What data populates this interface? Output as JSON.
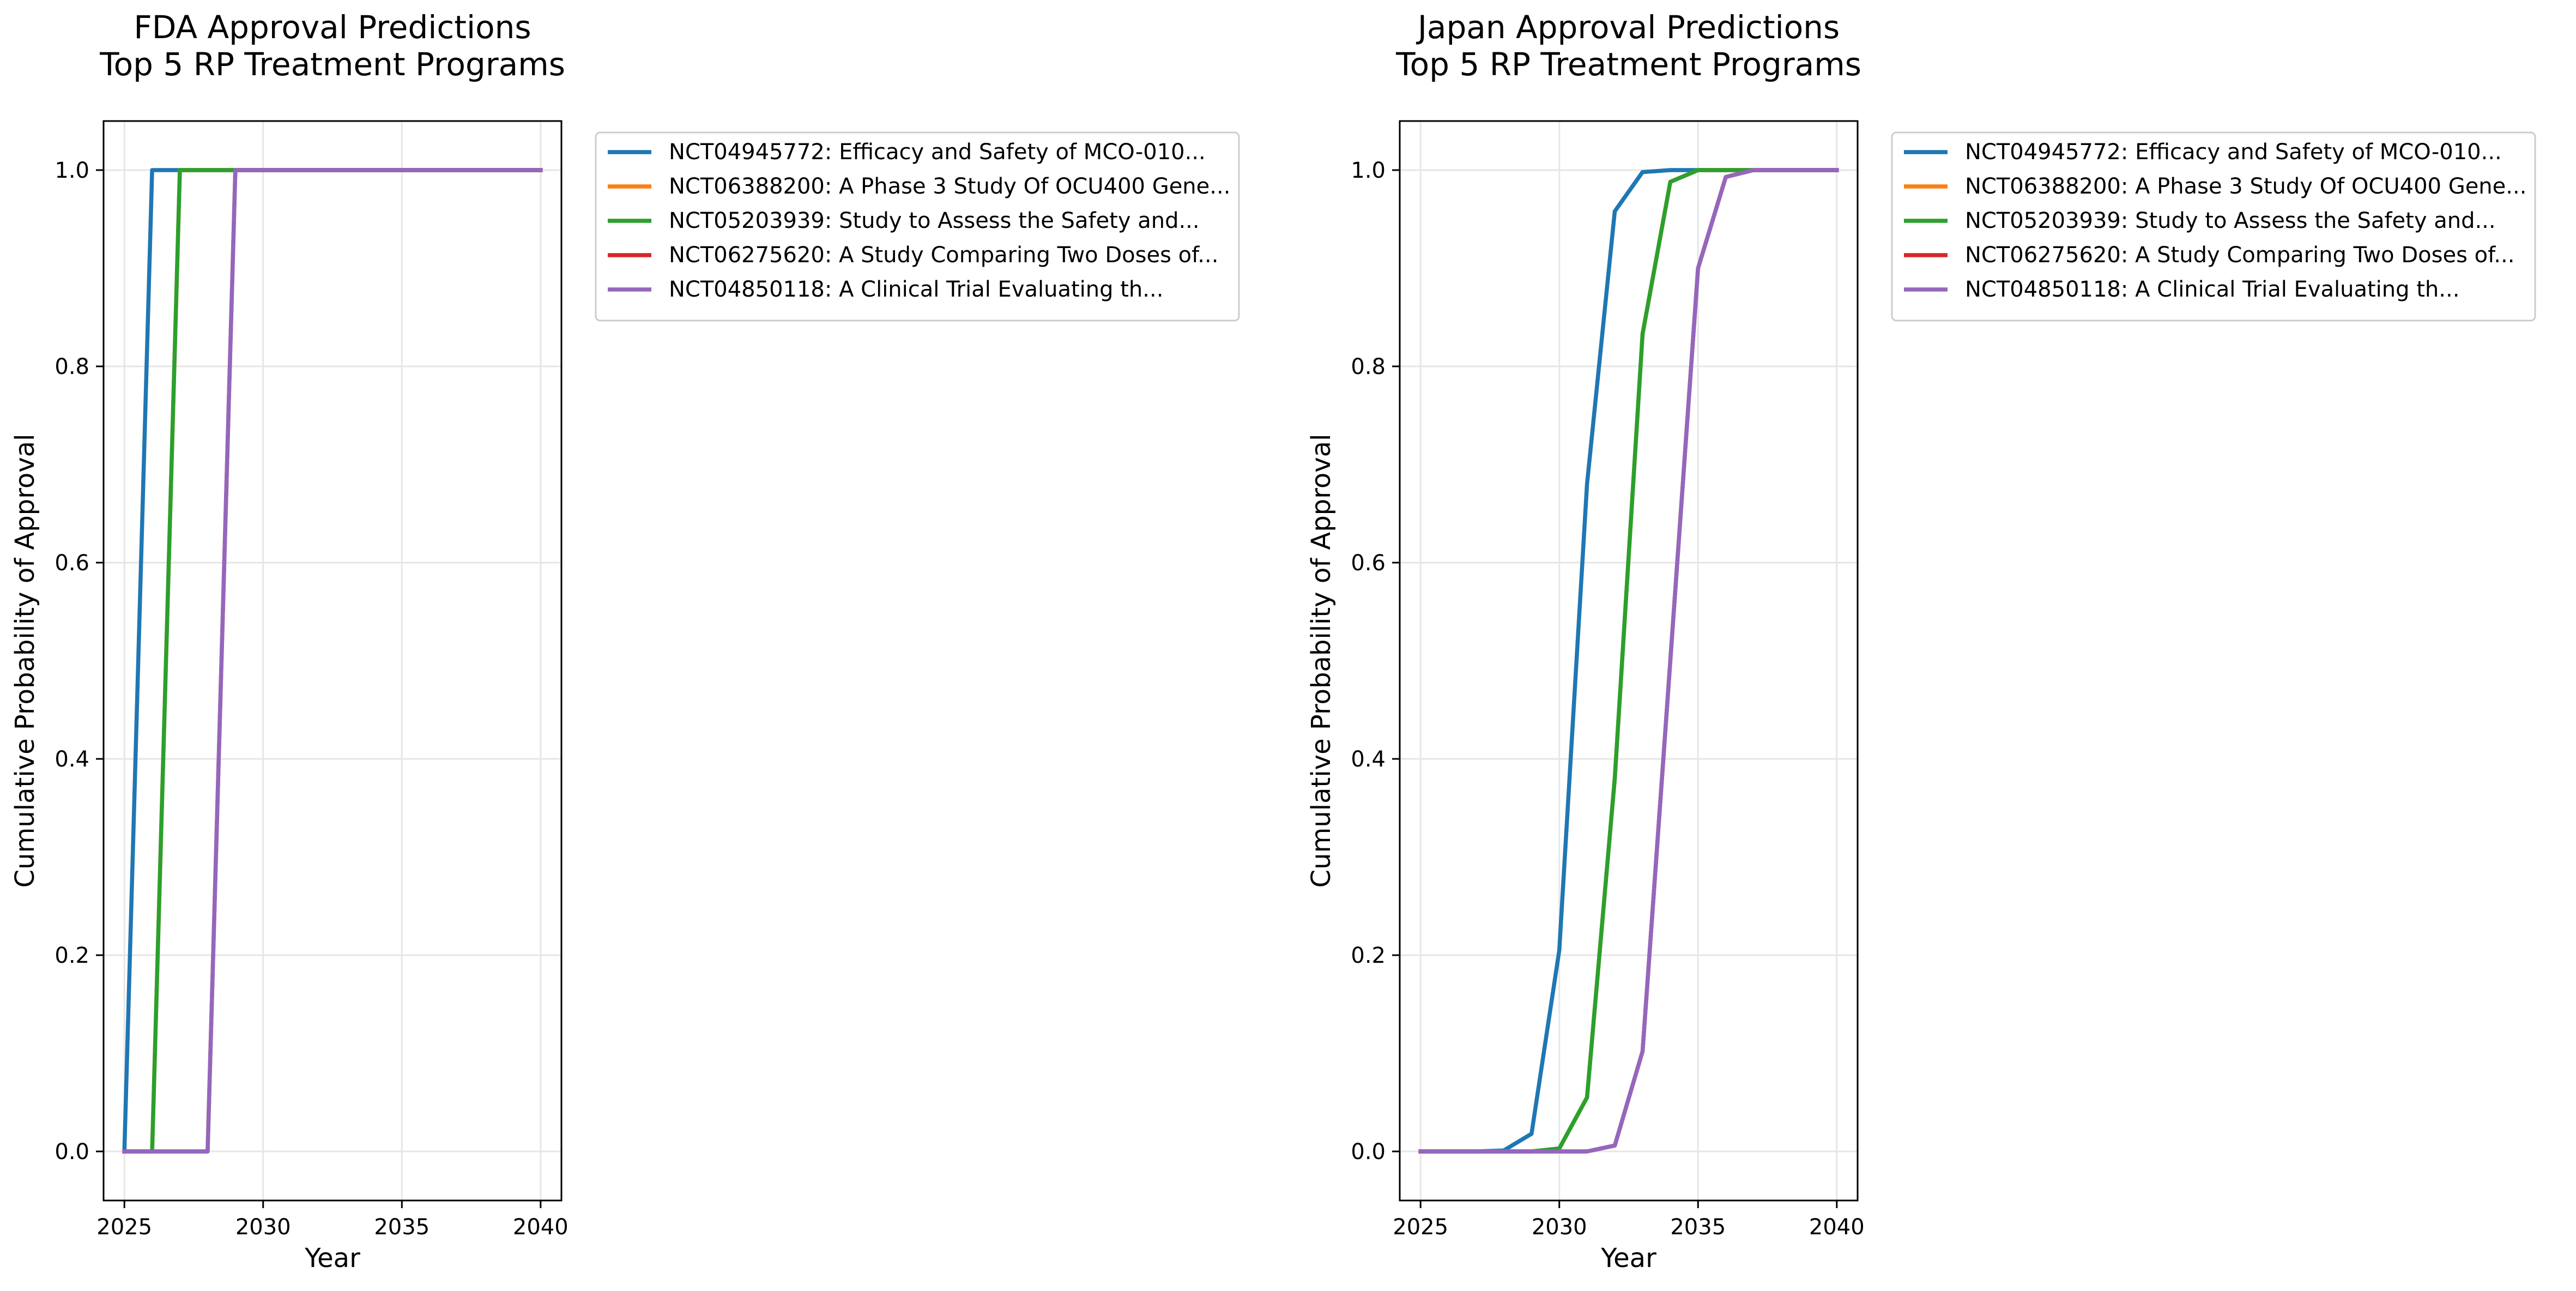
{
  "chart_data": [
    {
      "type": "line",
      "title": "FDA Approval Predictions\nTop 5 RP Treatment Programs",
      "xlabel": "Year",
      "ylabel": "Cumulative Probability of Approval",
      "xlim": [
        2024.25,
        2040.75
      ],
      "ylim": [
        -0.05,
        1.05
      ],
      "xticks": [
        2025,
        2030,
        2035,
        2040
      ],
      "yticks": [
        0.0,
        0.2,
        0.4,
        0.6,
        0.8,
        1.0
      ],
      "grid": true,
      "legend_position": "outside-upper-right",
      "x": [
        2025,
        2026,
        2027,
        2028,
        2029,
        2030,
        2031,
        2032,
        2033,
        2034,
        2035,
        2036,
        2037,
        2038,
        2039,
        2040
      ],
      "series": [
        {
          "name": "NCT04945772: Efficacy and Safety of MCO-010...",
          "color": "#1f77b4",
          "values": [
            0,
            1,
            1,
            1,
            1,
            1,
            1,
            1,
            1,
            1,
            1,
            1,
            1,
            1,
            1,
            1
          ]
        },
        {
          "name": "NCT06388200: A Phase 3 Study Of OCU400 Gene...",
          "color": "#ff7f0e",
          "values": [
            0,
            0,
            1,
            1,
            1,
            1,
            1,
            1,
            1,
            1,
            1,
            1,
            1,
            1,
            1,
            1
          ]
        },
        {
          "name": "NCT05203939: Study to Assess the Safety and...",
          "color": "#2ca02c",
          "values": [
            0,
            0,
            1,
            1,
            1,
            1,
            1,
            1,
            1,
            1,
            1,
            1,
            1,
            1,
            1,
            1
          ]
        },
        {
          "name": "NCT06275620: A Study Comparing Two Doses of...",
          "color": "#d62728",
          "values": [
            0,
            0,
            0,
            0,
            1,
            1,
            1,
            1,
            1,
            1,
            1,
            1,
            1,
            1,
            1,
            1
          ]
        },
        {
          "name": "NCT04850118: A Clinical Trial Evaluating th...",
          "color": "#9467bd",
          "values": [
            0,
            0,
            0,
            0,
            1,
            1,
            1,
            1,
            1,
            1,
            1,
            1,
            1,
            1,
            1,
            1
          ]
        }
      ]
    },
    {
      "type": "line",
      "title": "Japan Approval Predictions\nTop 5 RP Treatment Programs",
      "xlabel": "Year",
      "ylabel": "Cumulative Probability of Approval",
      "xlim": [
        2024.25,
        2040.75
      ],
      "ylim": [
        -0.05,
        1.05
      ],
      "xticks": [
        2025,
        2030,
        2035,
        2040
      ],
      "yticks": [
        0.0,
        0.2,
        0.4,
        0.6,
        0.8,
        1.0
      ],
      "grid": true,
      "legend_position": "outside-upper-right",
      "x": [
        2025,
        2026,
        2027,
        2028,
        2029,
        2030,
        2031,
        2032,
        2033,
        2034,
        2035,
        2036,
        2037,
        2038,
        2039,
        2040
      ],
      "series": [
        {
          "name": "NCT04945772: Efficacy and Safety of MCO-010...",
          "color": "#1f77b4",
          "values": [
            0,
            0,
            0,
            0.001,
            0.018,
            0.205,
            0.68,
            0.958,
            0.998,
            1.0,
            1.0,
            1.0,
            1.0,
            1.0,
            1.0,
            1.0
          ]
        },
        {
          "name": "NCT06388200: A Phase 3 Study Of OCU400 Gene...",
          "color": "#ff7f0e",
          "values": [
            0,
            0,
            0,
            0,
            0,
            0.003,
            0.055,
            0.38,
            0.833,
            0.988,
            1.0,
            1.0,
            1.0,
            1.0,
            1.0,
            1.0
          ]
        },
        {
          "name": "NCT05203939: Study to Assess the Safety and...",
          "color": "#2ca02c",
          "values": [
            0,
            0,
            0,
            0,
            0,
            0.003,
            0.055,
            0.38,
            0.833,
            0.988,
            1.0,
            1.0,
            1.0,
            1.0,
            1.0,
            1.0
          ]
        },
        {
          "name": "NCT06275620: A Study Comparing Two Doses of...",
          "color": "#d62728",
          "values": [
            0,
            0,
            0,
            0,
            0,
            0,
            0,
            0.006,
            0.102,
            0.5,
            0.9,
            0.993,
            1.0,
            1.0,
            1.0,
            1.0
          ]
        },
        {
          "name": "NCT04850118: A Clinical Trial Evaluating th...",
          "color": "#9467bd",
          "values": [
            0,
            0,
            0,
            0,
            0,
            0,
            0,
            0.006,
            0.102,
            0.5,
            0.9,
            0.993,
            1.0,
            1.0,
            1.0,
            1.0
          ]
        }
      ]
    }
  ]
}
